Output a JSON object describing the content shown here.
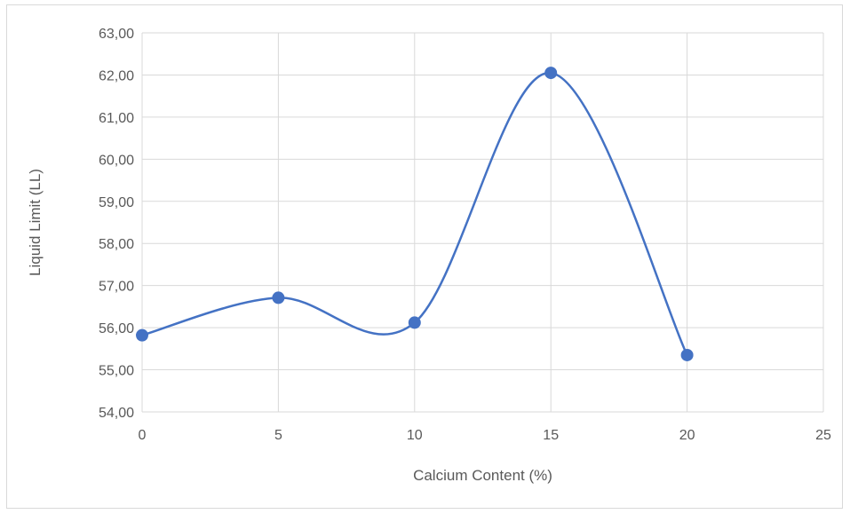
{
  "chart_data": {
    "type": "scatter",
    "title": "",
    "xlabel": "Calcium Content (%)",
    "ylabel": "Liquid Limit (LL)",
    "xlim": [
      0,
      25
    ],
    "ylim": [
      54,
      63
    ],
    "x_ticks": [
      "0",
      "5",
      "10",
      "15",
      "20",
      "25"
    ],
    "y_ticks": [
      "54,00",
      "55,00",
      "56,00",
      "57,00",
      "58,00",
      "59,00",
      "60,00",
      "61,00",
      "62,00",
      "63,00"
    ],
    "grid": true,
    "smoothed_line": true,
    "legend": "none",
    "series": [
      {
        "x": [
          0,
          5,
          10,
          15,
          20
        ],
        "y": [
          55.82,
          56.71,
          56.12,
          62.05,
          55.35
        ],
        "color": "#4472c4"
      }
    ]
  }
}
